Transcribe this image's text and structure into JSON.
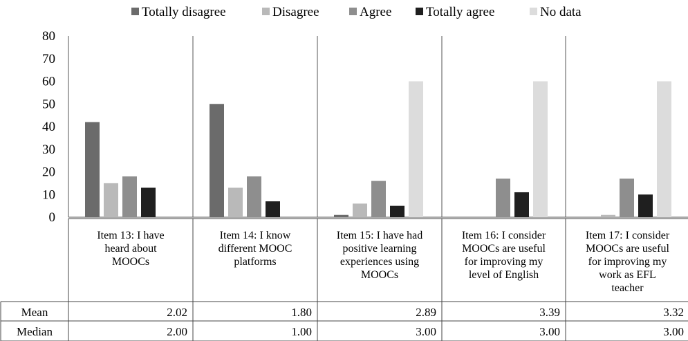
{
  "chart_data": {
    "type": "bar",
    "ylim": [
      0,
      80
    ],
    "yticks": [
      "0",
      "10",
      "20",
      "30",
      "40",
      "50",
      "60",
      "70",
      "80"
    ],
    "legend_position": "top",
    "categories": [
      [
        "Item 13: I have",
        "heard about",
        "MOOCs"
      ],
      [
        "Item 14: I know",
        "different MOOC",
        "platforms"
      ],
      [
        "Item 15: I have had",
        "positive learning",
        "experiences using",
        "MOOCs"
      ],
      [
        "Item 16: I consider",
        "MOOCs are useful",
        "for improving my",
        "level of English"
      ],
      [
        "Item 17: I consider",
        "MOOCs are useful",
        "for improving my",
        "work as EFL",
        "teacher"
      ]
    ],
    "series": [
      {
        "name": "Totally disagree",
        "color": "#6b6b6b",
        "values": [
          42,
          50,
          1,
          0,
          0
        ]
      },
      {
        "name": "Disagree",
        "color": "#b9b9b9",
        "values": [
          15,
          13,
          6,
          0,
          1
        ]
      },
      {
        "name": "Agree",
        "color": "#8e8e8e",
        "values": [
          18,
          18,
          16,
          17,
          17
        ]
      },
      {
        "name": "Totally agree",
        "color": "#1f1f1f",
        "values": [
          13,
          7,
          5,
          11,
          10
        ]
      },
      {
        "name": "No data",
        "color": "#dcdcdc",
        "values": [
          0,
          0,
          60,
          60,
          60
        ]
      }
    ],
    "table_rows": [
      {
        "label": "Mean",
        "values": [
          "2.02",
          "1.80",
          "2.89",
          "3.39",
          "3.32"
        ]
      },
      {
        "label": "Median",
        "values": [
          "2.00",
          "1.00",
          "3.00",
          "3.00",
          "3.00"
        ]
      }
    ]
  }
}
